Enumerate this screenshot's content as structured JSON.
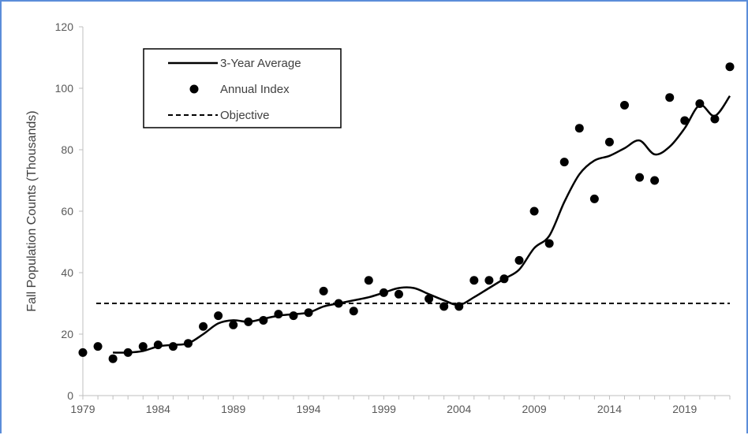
{
  "chart_data": {
    "type": "line",
    "title": "",
    "xlabel": "",
    "ylabel": "Fall Population Counts (Thousands)",
    "xlim": [
      1979,
      2022
    ],
    "ylim": [
      0,
      120
    ],
    "x_ticks": [
      1979,
      1984,
      1989,
      1994,
      1999,
      2004,
      2009,
      2014,
      2019
    ],
    "y_ticks": [
      0,
      20,
      40,
      60,
      80,
      100,
      120
    ],
    "grid": false,
    "legend_position": "top-left",
    "colors": {
      "marks": "#000000",
      "axis": "#bfbfbf",
      "frame": "#5b8dd9"
    },
    "series": [
      {
        "name": "3-Year Average",
        "style": "solid-line",
        "x": [
          1981,
          1982,
          1983,
          1984,
          1985,
          1986,
          1987,
          1988,
          1989,
          1990,
          1991,
          1992,
          1993,
          1994,
          1995,
          1996,
          1997,
          1998,
          1999,
          2000,
          2001,
          2002,
          2003,
          2004,
          2005,
          2006,
          2007,
          2008,
          2009,
          2010,
          2011,
          2012,
          2013,
          2014,
          2015,
          2016,
          2017,
          2018,
          2019,
          2020,
          2021,
          2022
        ],
        "values": [
          14,
          14,
          14.5,
          16,
          16.5,
          17,
          20,
          23.5,
          24.5,
          24,
          25,
          26,
          26.5,
          27,
          29,
          30,
          31,
          32,
          33.5,
          35,
          35,
          33,
          31,
          29.5,
          32,
          35,
          38,
          41,
          48,
          52,
          63,
          72,
          76.5,
          78,
          80.5,
          83,
          78.5,
          81,
          87,
          94.5,
          91,
          97.5
        ]
      },
      {
        "name": "Annual Index",
        "style": "points",
        "x": [
          1979,
          1980,
          1981,
          1982,
          1983,
          1984,
          1985,
          1986,
          1987,
          1988,
          1989,
          1990,
          1991,
          1992,
          1993,
          1994,
          1995,
          1996,
          1997,
          1998,
          1999,
          2000,
          2002,
          2003,
          2004,
          2005,
          2006,
          2007,
          2008,
          2009,
          2010,
          2011,
          2012,
          2013,
          2014,
          2015,
          2016,
          2017,
          2018,
          2019,
          2020,
          2021,
          2022
        ],
        "values": [
          14,
          16,
          12,
          14,
          16,
          16.5,
          16,
          17,
          22.5,
          26,
          23,
          24,
          24.5,
          26.5,
          26,
          27,
          34,
          30,
          27.5,
          37.5,
          33.5,
          33,
          31.5,
          29,
          29,
          37.5,
          37.5,
          38,
          44,
          60,
          49.5,
          76,
          87,
          64,
          82.5,
          94.5,
          71,
          70,
          97,
          89.5,
          95,
          90,
          107
        ]
      },
      {
        "name": "Objective",
        "style": "dashed-line",
        "value": 30
      }
    ]
  }
}
